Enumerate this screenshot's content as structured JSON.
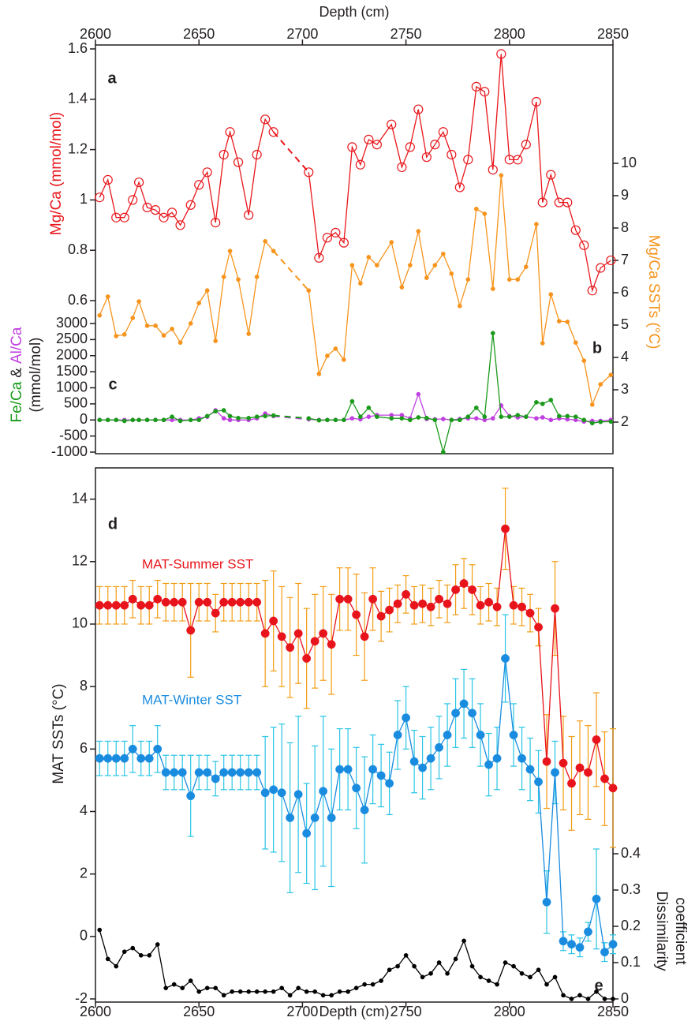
{
  "chart_data": [
    {
      "type": "line",
      "x_label": "Depth (cm)",
      "x": [
        2602,
        2606,
        2610,
        2614,
        2618,
        2621,
        2625,
        2629,
        2633,
        2637,
        2641,
        2646,
        2650,
        2654,
        2658,
        2662,
        2665,
        2669,
        2674,
        2678,
        2682,
        2686,
        2703,
        2708,
        2712,
        2716,
        2720,
        2724,
        2728,
        2732,
        2736,
        2743,
        2748,
        2752,
        2756,
        2760,
        2764,
        2768,
        2772,
        2776,
        2780,
        2784,
        2788,
        2792,
        2796,
        2800,
        2804,
        2808,
        2813,
        2816,
        2820,
        2824,
        2828,
        2832,
        2836,
        2840,
        2844,
        2849
      ],
      "xlim": [
        2600,
        2850
      ],
      "xticks": [
        2600,
        2650,
        2700,
        2750,
        2800,
        2850
      ],
      "y_label": "Mg/Ca (mmol/mol)",
      "y_label_color": "#e8161b",
      "ylim": [
        0.6,
        1.6
      ],
      "yticks": [
        0.6,
        0.8,
        1,
        1.2,
        1.4,
        1.6
      ],
      "y2_label": "Mg/Ca SSTs (°C)",
      "y2_label_color": "#f7941d",
      "y2lim": [
        2,
        10
      ],
      "y2ticks": [
        2,
        3,
        4,
        5,
        6,
        7,
        8,
        9,
        10
      ],
      "y3_label_lines": [
        [
          {
            "text": "Fe/Ca",
            "color": "#1a9a1a"
          },
          {
            "text": "&",
            "color": "#231f20"
          },
          {
            "text": "Al/Ca",
            "color": "#c040e0"
          }
        ],
        [
          {
            "text": "(mmol/mol)",
            "color": "#231f20"
          }
        ]
      ],
      "y3lim": [
        -1000,
        3000
      ],
      "y3ticks": [
        -1000,
        -500,
        0,
        500,
        1000,
        1500,
        2000,
        2500,
        3000
      ],
      "panel_labels": [
        "a",
        "b",
        "c"
      ],
      "series": [
        {
          "color": "#e8161b",
          "marker": "open-circle",
          "axis": "y",
          "values": [
            1.01,
            1.08,
            0.93,
            0.93,
            1.0,
            1.07,
            0.97,
            0.96,
            0.93,
            0.95,
            0.9,
            0.98,
            1.06,
            1.11,
            0.91,
            1.18,
            1.27,
            1.15,
            0.94,
            1.18,
            1.32,
            1.27,
            1.11,
            0.77,
            0.85,
            0.87,
            0.83,
            1.21,
            1.14,
            1.24,
            1.22,
            1.3,
            1.13,
            1.21,
            1.36,
            1.17,
            1.22,
            1.27,
            1.18,
            1.05,
            1.16,
            1.45,
            1.43,
            1.12,
            1.58,
            1.16,
            1.16,
            1.22,
            1.39,
            0.99,
            1.1,
            0.99,
            0.99,
            0.88,
            0.82,
            0.64,
            0.73,
            0.76
          ]
        },
        {
          "color": "#f7941d",
          "marker": "dot",
          "axis": "y2",
          "values": [
            5.3,
            5.88,
            4.66,
            4.71,
            5.22,
            5.73,
            4.98,
            4.98,
            4.68,
            4.88,
            4.46,
            5.05,
            5.68,
            6.07,
            4.51,
            6.49,
            7.29,
            6.41,
            4.73,
            6.49,
            7.59,
            7.29,
            6.07,
            3.49,
            4.05,
            4.27,
            3.93,
            6.85,
            6.29,
            7.1,
            6.85,
            7.56,
            6.17,
            6.85,
            7.9,
            6.46,
            6.85,
            7.2,
            6.59,
            5.59,
            6.41,
            8.59,
            8.44,
            6.12,
            9.63,
            6.41,
            6.41,
            6.8,
            8.12,
            4.44,
            5.95,
            5.12,
            5.1,
            4.46,
            3.9,
            2.54,
            3.17,
            3.46
          ]
        },
        {
          "color": "#c040e0",
          "marker": "dot",
          "axis": "y3",
          "values": [
            0,
            0,
            0,
            0,
            0,
            0,
            0,
            0,
            0,
            0,
            0,
            0,
            50,
            100,
            300,
            50,
            0,
            0,
            0,
            50,
            200,
            120,
            20,
            0,
            0,
            0,
            0,
            50,
            20,
            100,
            150,
            150,
            150,
            50,
            800,
            30,
            20,
            30,
            0,
            30,
            50,
            50,
            0,
            50,
            450,
            120,
            80,
            100,
            50,
            80,
            0,
            50,
            20,
            0,
            -50,
            -30,
            -30,
            0
          ]
        },
        {
          "color": "#1a9a1a",
          "marker": "dot",
          "axis": "y3",
          "values": [
            0,
            0,
            0,
            -30,
            0,
            0,
            0,
            0,
            0,
            100,
            -30,
            0,
            0,
            120,
            270,
            300,
            120,
            60,
            60,
            100,
            120,
            140,
            50,
            -10,
            0,
            0,
            0,
            580,
            100,
            380,
            100,
            50,
            50,
            0,
            80,
            60,
            0,
            -1000,
            0,
            0,
            100,
            380,
            100,
            2700,
            100,
            100,
            150,
            100,
            550,
            500,
            620,
            120,
            120,
            100,
            0,
            -100,
            -60,
            -50
          ]
        }
      ]
    },
    {
      "type": "line",
      "x_label": "Depth (cm)",
      "x": [
        2602,
        2606,
        2610,
        2614,
        2618,
        2622,
        2626,
        2630,
        2634,
        2638,
        2642,
        2646,
        2650,
        2654,
        2658,
        2662,
        2666,
        2670,
        2674,
        2678,
        2682,
        2686,
        2690,
        2694,
        2698,
        2702,
        2706,
        2710,
        2714,
        2718,
        2722,
        2726,
        2730,
        2734,
        2738,
        2742,
        2746,
        2750,
        2754,
        2758,
        2762,
        2766,
        2770,
        2774,
        2778,
        2782,
        2786,
        2790,
        2794,
        2798,
        2802,
        2806,
        2810,
        2814,
        2818,
        2822,
        2826,
        2830,
        2834,
        2838,
        2842,
        2846,
        2850
      ],
      "xlim": [
        2600,
        2850
      ],
      "xticks": [
        2600,
        2650,
        2700,
        2750,
        2800,
        2850
      ],
      "y_label": "MAT SSTs (°C)",
      "y_label_color": "#231f20",
      "ylim": [
        -2.1,
        15
      ],
      "yticks": [
        -2,
        0,
        2,
        4,
        6,
        8,
        10,
        12,
        14
      ],
      "y2_label_lines": [
        "Dissimilarity",
        "coefficient"
      ],
      "y2lim": [
        0,
        0.4
      ],
      "y2ticks": [
        0,
        0.1,
        0.2,
        0.3,
        0.4
      ],
      "panel_labels": [
        "d",
        "e"
      ],
      "series": [
        {
          "name": "MAT-Summer SST",
          "color": "#e8141b",
          "error_color": "#f39c12",
          "marker": "big-dot",
          "axis": "y",
          "values": [
            10.6,
            10.6,
            10.6,
            10.6,
            10.8,
            10.6,
            10.6,
            10.8,
            10.7,
            10.7,
            10.7,
            9.8,
            10.7,
            10.7,
            10.35,
            10.7,
            10.7,
            10.7,
            10.7,
            10.7,
            9.7,
            10.1,
            9.6,
            9.25,
            9.7,
            8.9,
            9.45,
            9.7,
            9.35,
            10.8,
            10.8,
            10.3,
            9.6,
            10.8,
            10.25,
            10.45,
            10.65,
            10.95,
            10.6,
            10.65,
            10.55,
            10.8,
            10.65,
            11.1,
            11.3,
            11.1,
            10.6,
            10.7,
            10.55,
            13.05,
            10.6,
            10.55,
            10.35,
            9.9,
            5.6,
            10.5,
            5.55,
            4.9,
            5.4,
            5.25,
            6.3,
            5.05,
            4.75
          ],
          "errors": [
            0.6,
            0.6,
            0.6,
            0.6,
            0.6,
            0.6,
            0.6,
            0.6,
            0.6,
            0.6,
            0.6,
            1.5,
            0.6,
            0.6,
            0.6,
            0.6,
            0.6,
            0.6,
            0.6,
            0.6,
            1.7,
            1.6,
            1.6,
            1.6,
            1.6,
            1.6,
            1.5,
            1.5,
            1.6,
            1.0,
            1.0,
            1.3,
            1.4,
            1.0,
            0.8,
            0.7,
            0.6,
            0.6,
            0.6,
            0.6,
            0.6,
            0.6,
            0.6,
            0.8,
            0.8,
            0.8,
            0.6,
            0.6,
            0.6,
            1.3,
            0.6,
            0.6,
            0.6,
            0.6,
            1.5,
            1.5,
            1.5,
            1.5,
            1.5,
            1.5,
            1.5,
            1.5,
            1.9
          ]
        },
        {
          "name": "MAT-Winter SST",
          "color": "#1a8ce0",
          "error_color": "#29c5e6",
          "marker": "big-dot",
          "axis": "y",
          "values": [
            5.7,
            5.7,
            5.7,
            5.7,
            6.0,
            5.7,
            5.7,
            6.0,
            5.25,
            5.25,
            5.25,
            4.5,
            5.25,
            5.25,
            5.05,
            5.25,
            5.25,
            5.25,
            5.25,
            5.25,
            4.6,
            4.7,
            4.6,
            3.8,
            4.55,
            3.3,
            3.8,
            4.65,
            3.8,
            5.35,
            5.35,
            4.75,
            4.05,
            5.35,
            5.15,
            4.9,
            6.45,
            7.0,
            5.6,
            5.4,
            5.7,
            6.05,
            6.45,
            7.15,
            7.45,
            7.15,
            6.45,
            5.5,
            5.7,
            8.9,
            6.45,
            5.7,
            5.35,
            4.95,
            1.1,
            5.25,
            -0.15,
            -0.25,
            -0.35,
            0.15,
            1.2,
            -0.5,
            -0.25
          ],
          "errors": [
            0.55,
            0.55,
            0.55,
            0.55,
            0.75,
            0.55,
            0.55,
            0.75,
            0.55,
            0.55,
            0.55,
            1.3,
            0.55,
            0.55,
            0.55,
            0.55,
            0.55,
            0.55,
            0.55,
            0.55,
            1.8,
            2.0,
            2.2,
            2.4,
            2.5,
            1.6,
            2.3,
            2.4,
            2.2,
            1.3,
            1.3,
            1.3,
            1.7,
            1.1,
            1.0,
            1.0,
            1.1,
            1.0,
            1.0,
            1.0,
            1.0,
            1.0,
            1.0,
            1.1,
            1.1,
            1.1,
            1.0,
            1.0,
            1.0,
            1.4,
            1.0,
            1.0,
            1.0,
            1.0,
            1.0,
            1.0,
            0.3,
            0.3,
            0.3,
            0.3,
            1.6,
            0.3,
            0.3
          ]
        },
        {
          "color": "#000000",
          "marker": "dot",
          "axis": "y2",
          "values": [
            0.19,
            0.11,
            0.09,
            0.13,
            0.14,
            0.12,
            0.12,
            0.15,
            0.03,
            0.04,
            0.03,
            0.05,
            0.02,
            0.03,
            0.03,
            0.01,
            0.02,
            0.02,
            0.02,
            0.02,
            0.02,
            0.02,
            0.03,
            0.01,
            0.03,
            0.02,
            0.02,
            0.01,
            0.01,
            0.02,
            0.02,
            0.03,
            0.04,
            0.04,
            0.05,
            0.08,
            0.09,
            0.12,
            0.09,
            0.06,
            0.07,
            0.1,
            0.07,
            0.11,
            0.16,
            0.09,
            0.06,
            0.05,
            0.04,
            0.1,
            0.09,
            0.07,
            0.06,
            0.08,
            0.04,
            0.06,
            0.01,
            0.0,
            0.01,
            0.0,
            0.02,
            0.0,
            0.0
          ]
        }
      ]
    }
  ]
}
